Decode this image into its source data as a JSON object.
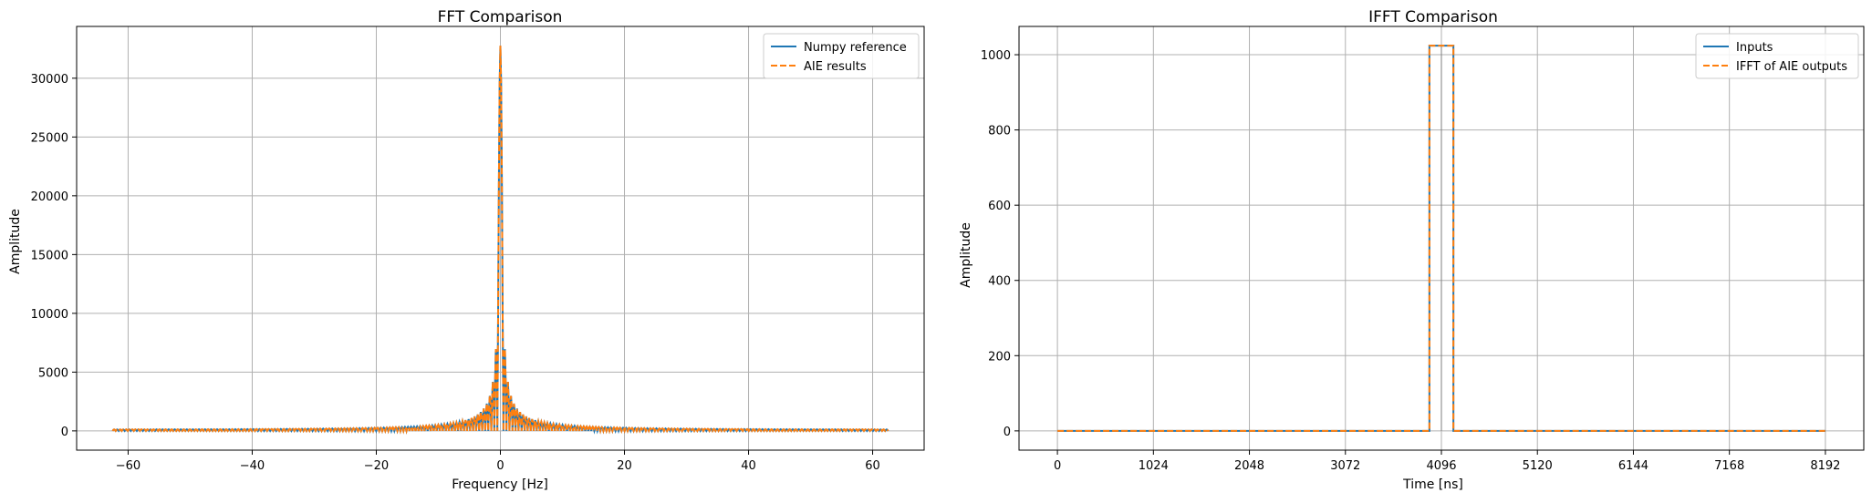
{
  "chart_data": [
    {
      "type": "line",
      "title": "FFT Comparison",
      "xlabel": "Frequency [Hz]",
      "ylabel": "Amplitude",
      "xlim": [
        -68.3,
        68.3
      ],
      "ylim": [
        -1638,
        34406
      ],
      "xticks": [
        -60,
        -40,
        -20,
        0,
        20,
        40,
        60
      ],
      "xtick_labels": [
        "−60",
        "−40",
        "−20",
        "0",
        "20",
        "40",
        "60"
      ],
      "yticks": [
        0,
        5000,
        10000,
        15000,
        20000,
        25000,
        30000
      ],
      "ytick_labels": [
        "0",
        "5000",
        "10000",
        "15000",
        "20000",
        "25000",
        "30000"
      ],
      "grid": true,
      "legend_position": "top-right",
      "x_range": [
        -62.5,
        62.5
      ],
      "peak_amplitude": 32768,
      "null_spacing_hz": 3.90625,
      "series": [
        {
          "name": "Numpy reference",
          "color": "#1f77b4",
          "style": "solid"
        },
        {
          "name": "AIE results",
          "color": "#ff7f0e",
          "style": "dashed"
        }
      ]
    },
    {
      "type": "line",
      "title": "IFFT Comparison",
      "xlabel": "Time [ns]",
      "ylabel": "Amplitude",
      "xlim": [
        -409.6,
        8601.6
      ],
      "ylim": [
        -51.2,
        1075.2
      ],
      "xticks": [
        0,
        1024,
        2048,
        3072,
        4096,
        5120,
        6144,
        7168,
        8192
      ],
      "xtick_labels": [
        "0",
        "1024",
        "2048",
        "3072",
        "4096",
        "5120",
        "6144",
        "7168",
        "8192"
      ],
      "yticks": [
        0,
        200,
        400,
        600,
        800,
        1000
      ],
      "ytick_labels": [
        "0",
        "200",
        "400",
        "600",
        "800",
        "1000"
      ],
      "grid": true,
      "legend_position": "top-right",
      "series": [
        {
          "name": "Inputs",
          "color": "#1f77b4",
          "style": "solid",
          "x": [
            0,
            3968,
            3968,
            4224,
            4224,
            8192
          ],
          "y": [
            0,
            0,
            1024,
            1024,
            0,
            0
          ]
        },
        {
          "name": "IFFT of AIE outputs",
          "color": "#ff7f0e",
          "style": "dashed",
          "x": [
            0,
            3968,
            3968,
            4224,
            4224,
            8192
          ],
          "y": [
            0,
            0,
            1024,
            1024,
            0,
            0
          ]
        }
      ],
      "inner_outline": {
        "x": [
          4096,
          4096
        ],
        "y": [
          0,
          1024
        ],
        "color": "#7f7f7f"
      }
    }
  ]
}
